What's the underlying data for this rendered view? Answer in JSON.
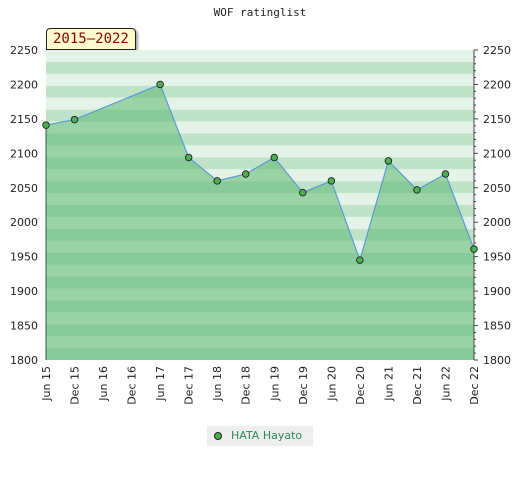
{
  "chart_data": {
    "type": "area",
    "title": "WOF ratinglist",
    "range_label": "2015–2022",
    "x": [
      "Jun 15",
      "Dec 15",
      "Jun 16",
      "Dec 16",
      "Jun 17",
      "Dec 17",
      "Jun 18",
      "Dec 18",
      "Jun 19",
      "Dec 19",
      "Jun 20",
      "Dec 20",
      "Jun 21",
      "Dec 21",
      "Jun 22",
      "Dec 22"
    ],
    "series": [
      {
        "name": "HATA Hayato",
        "values": [
          2141,
          2149,
          null,
          null,
          2200,
          2094,
          2060,
          2070,
          2094,
          2043,
          2060,
          1945,
          2089,
          2047,
          2070,
          1961
        ]
      }
    ],
    "ylim": [
      1800,
      2250
    ],
    "yticks": [
      1800,
      1850,
      1900,
      1950,
      2000,
      2050,
      2100,
      2150,
      2200,
      2250
    ],
    "xlabel": "",
    "ylabel": "",
    "grid": "horizontal bands",
    "legend_position": "bottom-center",
    "colors": {
      "line": "#5b9bd5",
      "fill": "#5cb870",
      "marker": "#4caf50",
      "band_dark": "#bfe3c9",
      "band_light": "#e4f3e7"
    }
  }
}
